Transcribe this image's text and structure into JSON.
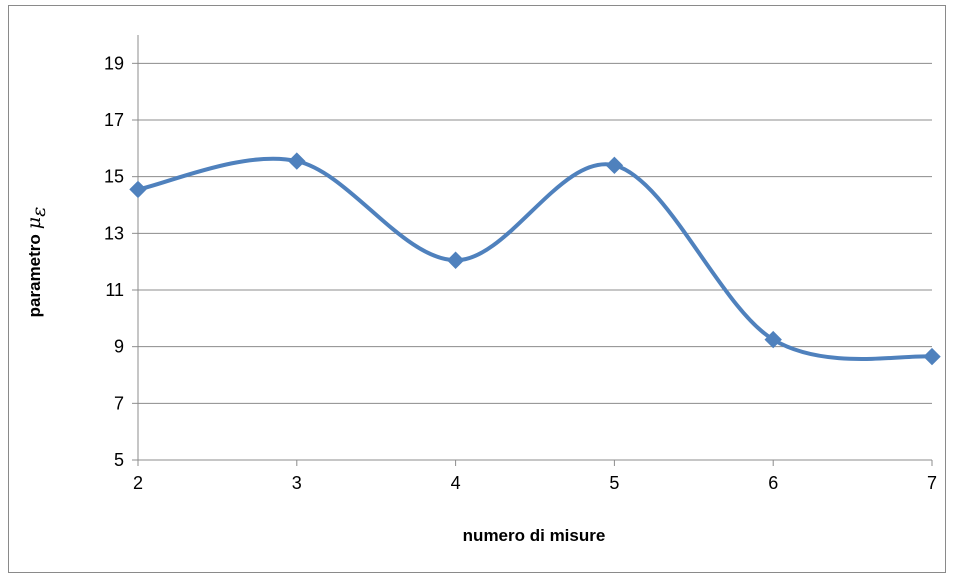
{
  "chart_data": {
    "type": "line",
    "x": [
      2,
      3,
      4,
      5,
      6,
      7
    ],
    "series": [
      {
        "values": [
          14.55,
          15.55,
          12.05,
          15.4,
          9.25,
          8.65
        ],
        "color": "#4f81bd",
        "marker": "diamond",
        "smooth": true
      }
    ],
    "xlabel": "numero di misure",
    "ylabel": "parametro",
    "ylabel_symbol": "μ",
    "ylabel_subscript": "ε",
    "xlim": [
      2,
      7
    ],
    "ylim": [
      5,
      20
    ],
    "xticks": [
      "2",
      "3",
      "4",
      "5",
      "6",
      "7"
    ],
    "yticks": [
      "5",
      "7",
      "9",
      "11",
      "13",
      "15",
      "17",
      "19"
    ],
    "grid": "horizontal",
    "legend": "none"
  }
}
